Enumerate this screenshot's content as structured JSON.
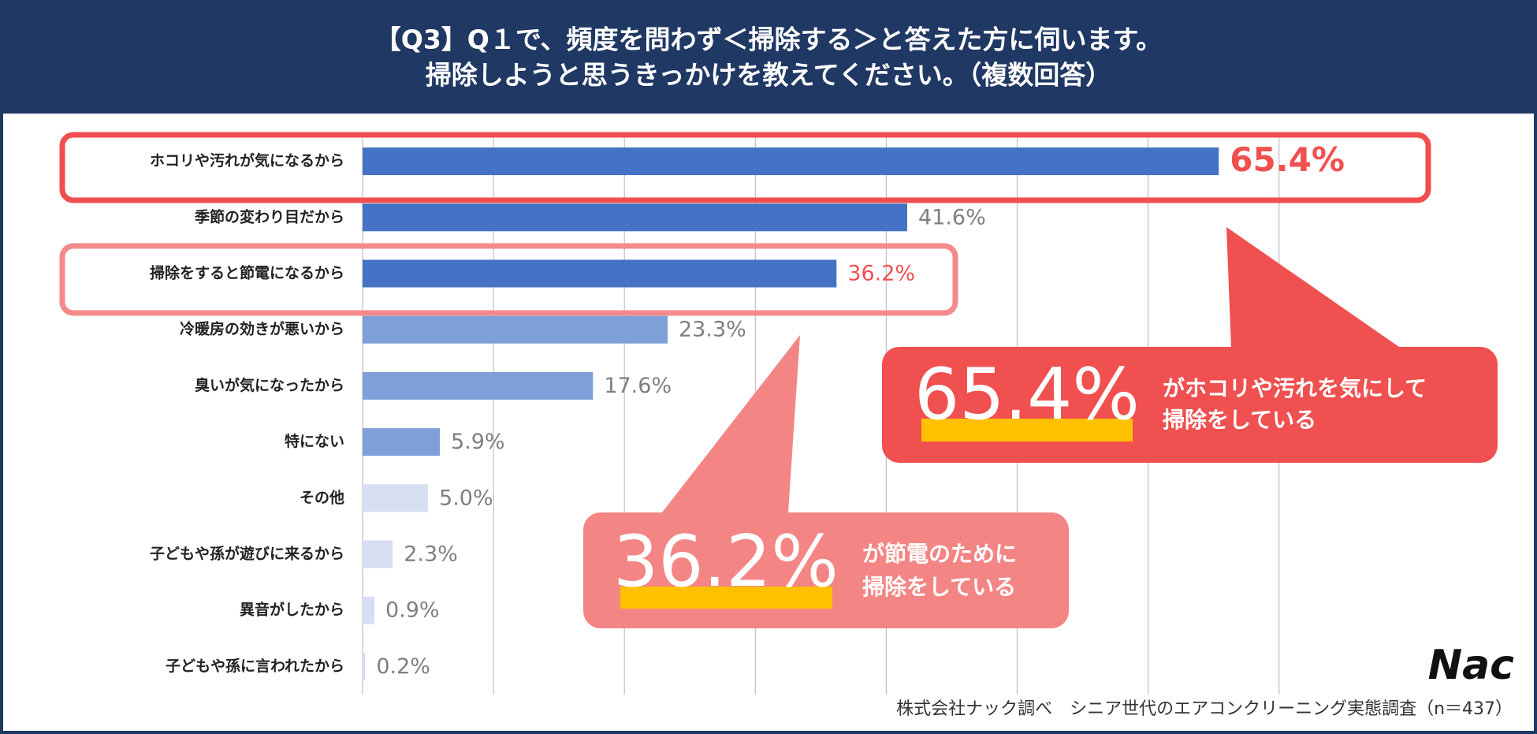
{
  "chart_data": {
    "type": "hbar",
    "title": [
      "【Q3】Q１で、頻度を問わず＜掃除する＞と答えた方に伺います。",
      "掃除しようと思うきっかけを教えてください。（複数回答）"
    ],
    "categories": [
      "ホコリや汚れが気になるから",
      "季節の変わり目だから",
      "掃除をすると節電になるから",
      "冷暖房の効きが悪いから",
      "臭いが気になったから",
      "特にない",
      "その他",
      "子どもや孫が遊びに来るから",
      "異音がしたから",
      "子どもや孫に言われたから"
    ],
    "values": [
      65.4,
      41.6,
      36.2,
      23.3,
      17.6,
      5.9,
      5.0,
      2.3,
      0.9,
      0.2
    ],
    "value_labels": [
      "65.4%",
      "41.6%",
      "36.2%",
      "23.3%",
      "17.6%",
      "5.9%",
      "5.0%",
      "2.3%",
      "0.9%",
      "0.2%"
    ],
    "colors": [
      "#4472c4",
      "#4472c4",
      "#4472c4",
      "#7f9fd9",
      "#7f9fd9",
      "#7f9fd9",
      "#d6dff2",
      "#d6dff2",
      "#d6dff2",
      "#d6dff2"
    ],
    "label_colors": [
      "#f0504f",
      "#7f7f7f",
      "#f0504f",
      "#7f7f7f",
      "#7f7f7f",
      "#7f7f7f",
      "#7f7f7f",
      "#7f7f7f",
      "#7f7f7f",
      "#7f7f7f"
    ],
    "xlim": [
      0,
      70
    ],
    "xticks": [
      0,
      10,
      20,
      30,
      40,
      50,
      60,
      70
    ],
    "grid": true,
    "callouts": [
      {
        "big": "65.4%",
        "text": [
          "がホコリや汚れを気にして",
          "掃除をしている"
        ]
      },
      {
        "big": "36.2%",
        "text": [
          "が節電のために",
          "掃除をしている"
        ]
      }
    ],
    "source": "株式会社ナック調べ　シニア世代のエアコンクリーニング実態調査（n＝437）",
    "logo": "Nac"
  }
}
